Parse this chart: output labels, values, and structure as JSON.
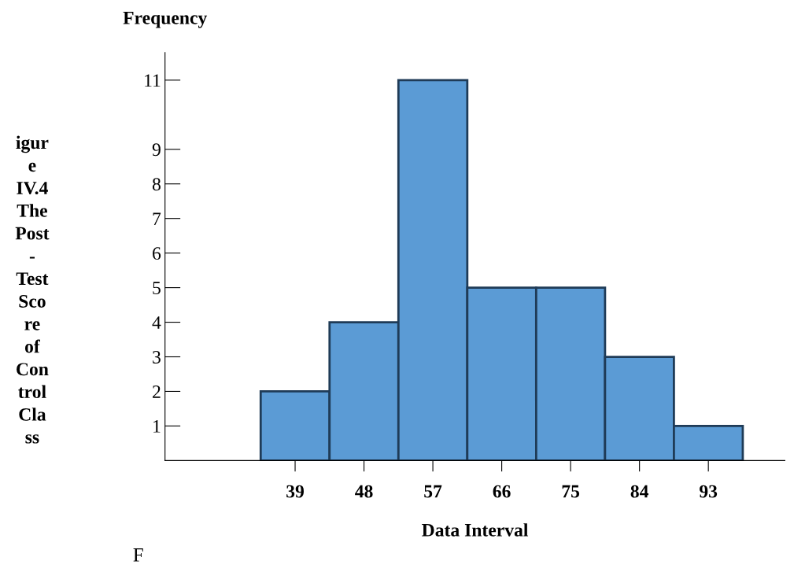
{
  "chart_data": {
    "type": "histogram",
    "xlabel": "Data Interval",
    "ylabel": "Frequency",
    "bins": [
      34.5,
      43.5,
      52.5,
      61.5,
      70.5,
      79.5,
      88.5,
      97.5
    ],
    "values": [
      2,
      4,
      11,
      5,
      5,
      3,
      1
    ],
    "color": "#5b9bd5",
    "xlim": [
      22,
      103
    ],
    "xticks": [
      39,
      48,
      57,
      66,
      75,
      84,
      93
    ],
    "ylim": [
      0,
      11.8
    ],
    "yticks": [
      1,
      2,
      3,
      4,
      5,
      6,
      7,
      8,
      9,
      11
    ],
    "grid": false,
    "legend": false,
    "annotations": [
      "igur\ne\nIV.4\nThe\nPost\n-\nTest\nSco\nre\nof\nCon\ntrol\nCla\nss",
      "F"
    ]
  }
}
